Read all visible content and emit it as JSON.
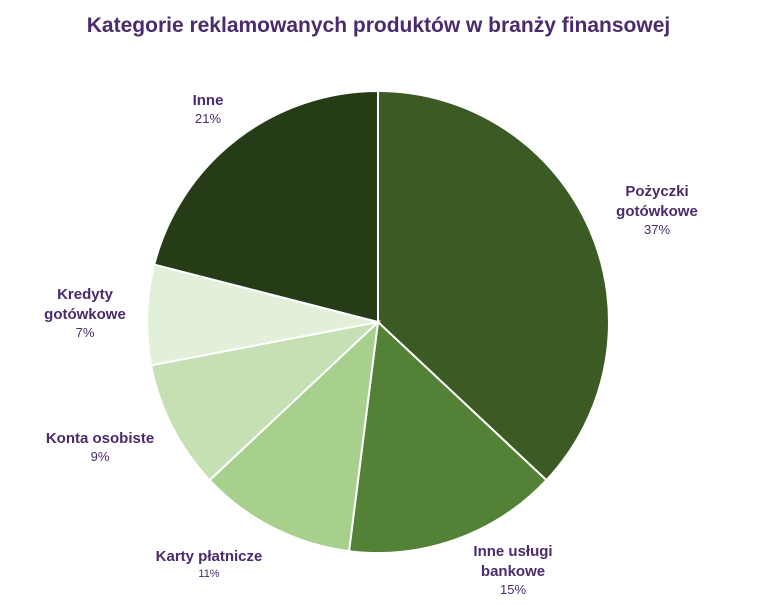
{
  "chart_data": {
    "type": "pie",
    "title": "Kategorie reklamowanych produktów w branży finansowej",
    "slices": [
      {
        "name_lines": [
          "Pożyczki",
          "gotówkowe"
        ],
        "percent_label": "37%",
        "value": 37,
        "color": "#3b5a24"
      },
      {
        "name_lines": [
          "Inne usługi",
          "bankowe"
        ],
        "percent_label": "15%",
        "value": 15,
        "color": "#538135"
      },
      {
        "name_lines": [
          "Karty płatnicze"
        ],
        "percent_label": "11%",
        "value": 11,
        "color": "#a8d08d"
      },
      {
        "name_lines": [
          "Konta osobiste"
        ],
        "percent_label": "9%",
        "value": 9,
        "color": "#c5e0b3"
      },
      {
        "name_lines": [
          "Kredyty",
          "gotówkowe"
        ],
        "percent_label": "7%",
        "value": 7,
        "color": "#e2efd9"
      },
      {
        "name_lines": [
          "Inne"
        ],
        "percent_label": "21%",
        "value": 21,
        "color": "#263c17"
      }
    ],
    "start": "12 o'clock",
    "direction": "clockwise",
    "legend": "none",
    "labels": "outside"
  }
}
